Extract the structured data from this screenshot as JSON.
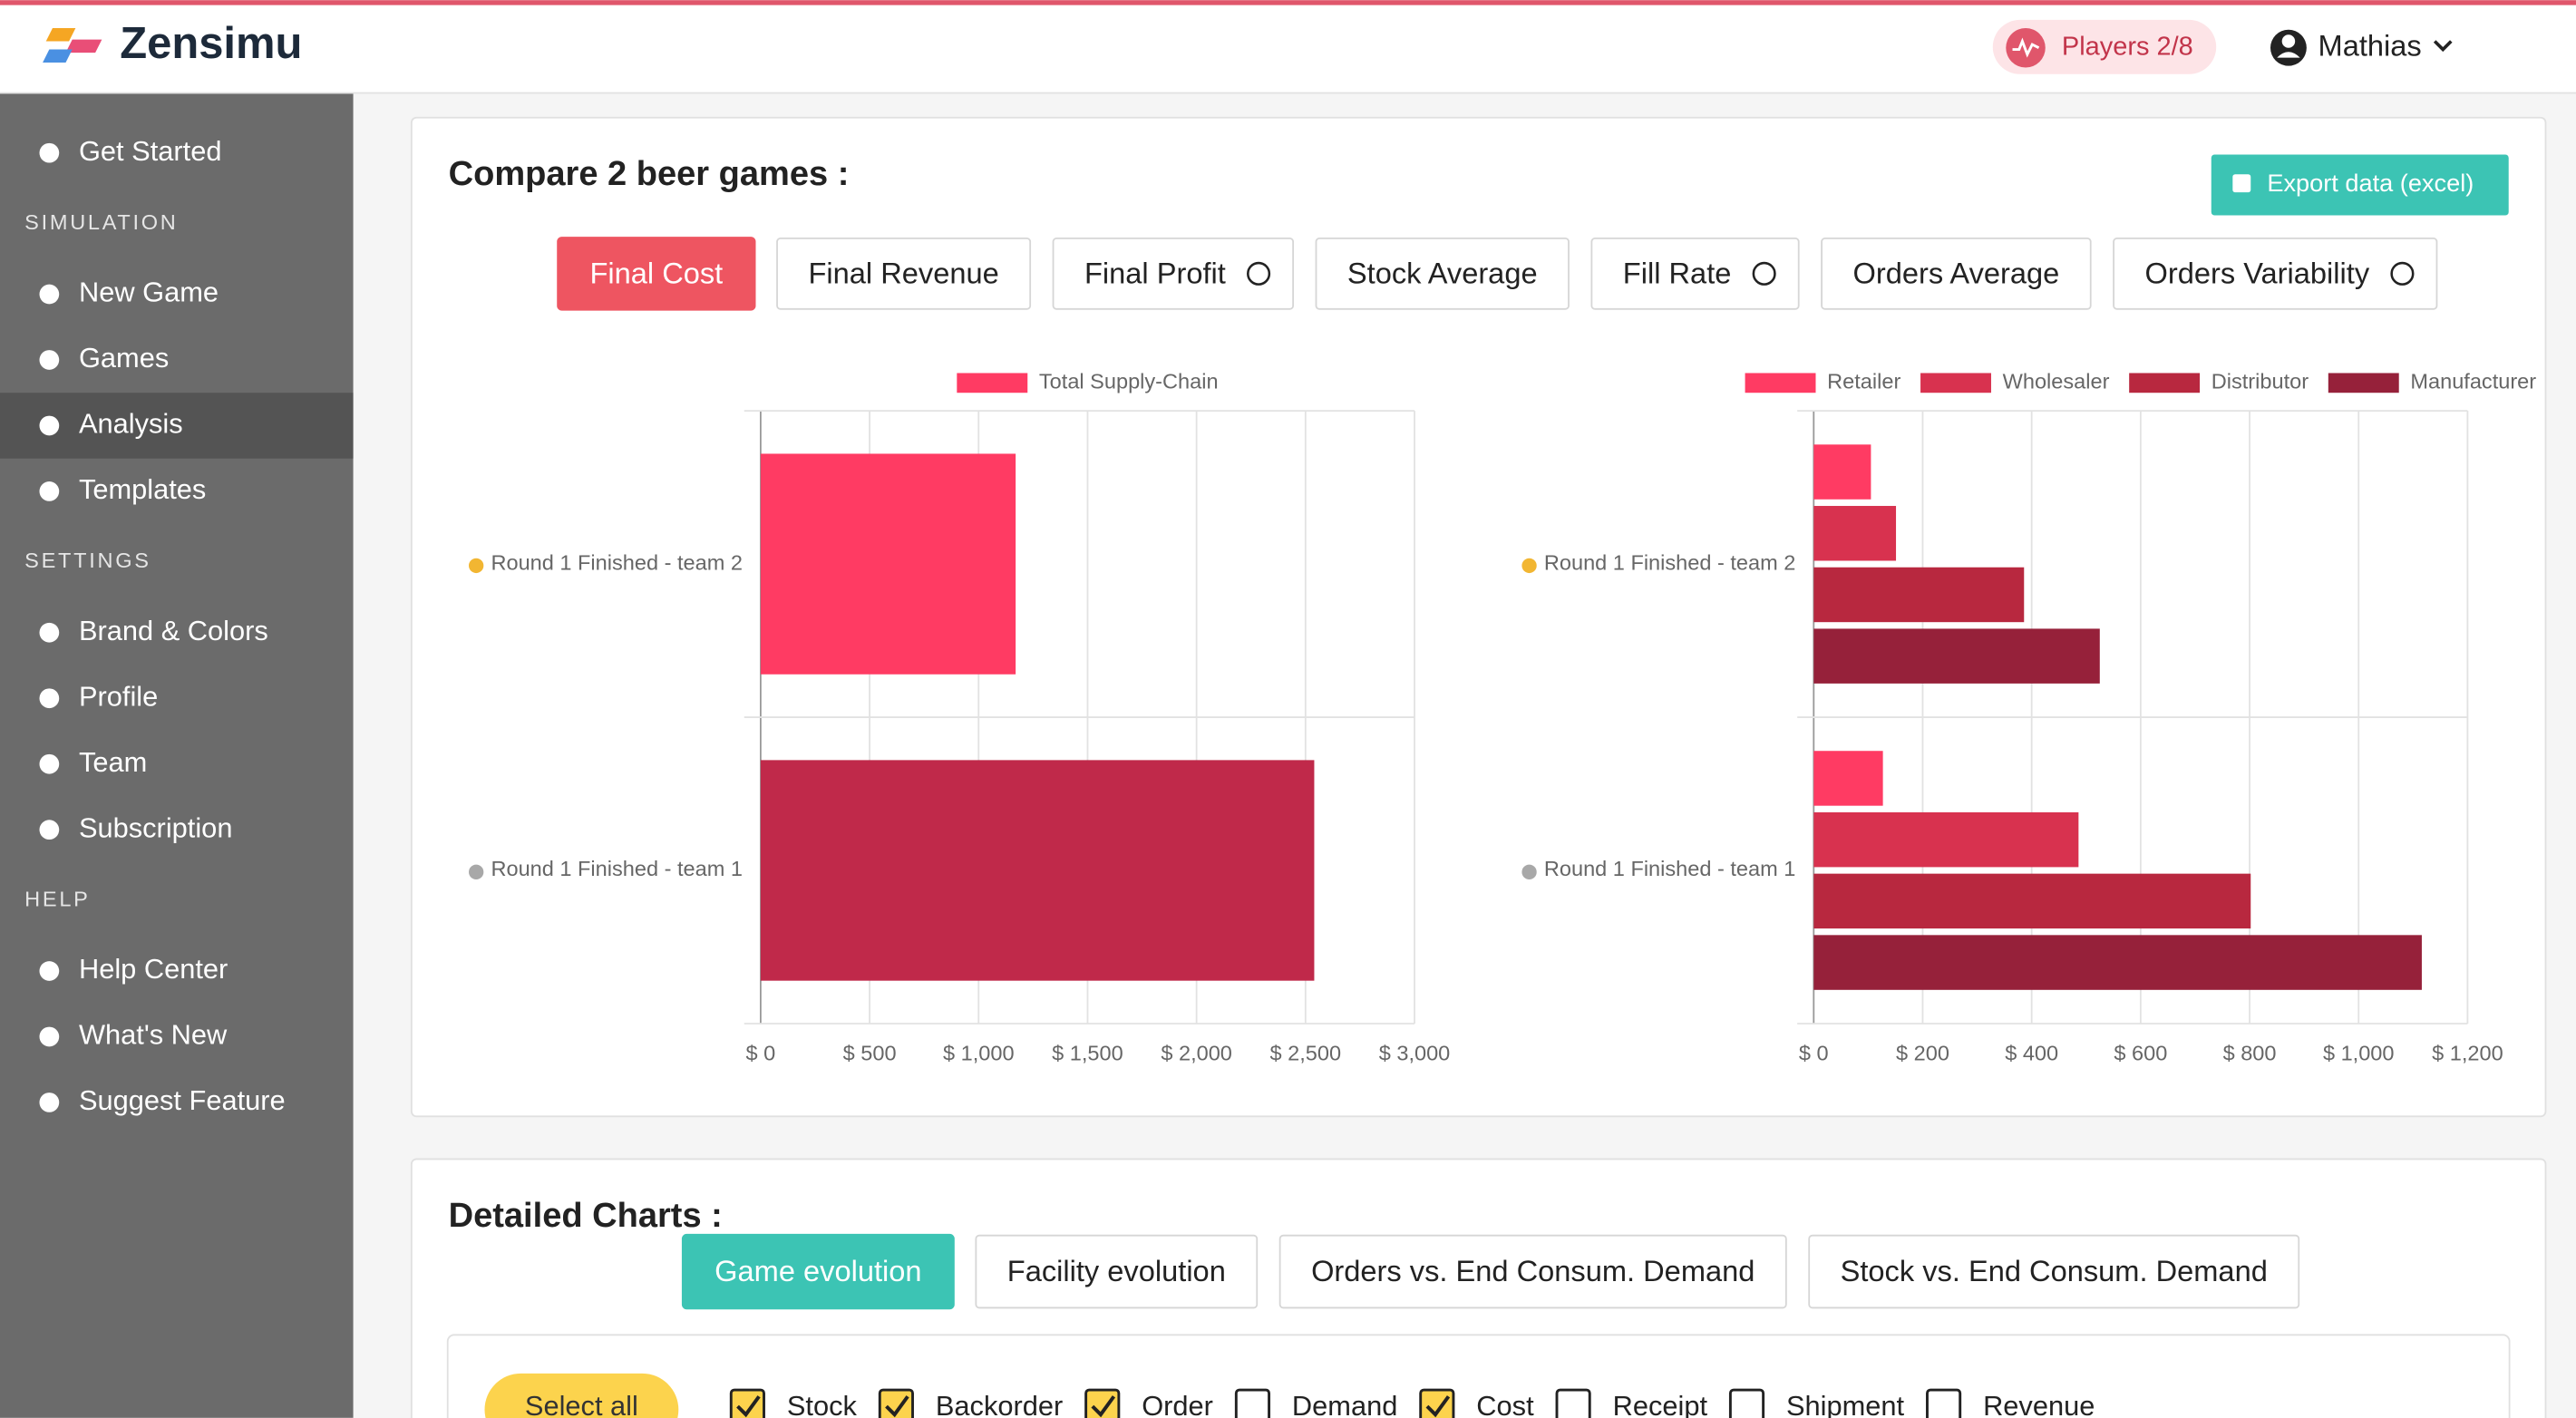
{
  "header": {
    "logo": "Zensimu",
    "players": "Players 2/8",
    "user": "Mathias"
  },
  "sidebar": [
    {
      "items": [
        {
          "label": "Get Started"
        }
      ]
    },
    {
      "title": "SIMULATION",
      "items": [
        {
          "label": "New Game"
        },
        {
          "label": "Games"
        },
        {
          "label": "Analysis",
          "active": true
        },
        {
          "label": "Templates"
        }
      ]
    },
    {
      "title": "SETTINGS",
      "items": [
        {
          "label": "Brand & Colors"
        },
        {
          "label": "Profile"
        },
        {
          "label": "Team"
        },
        {
          "label": "Subscription"
        }
      ]
    },
    {
      "title": "HELP",
      "items": [
        {
          "label": "Help Center"
        },
        {
          "label": "What's New"
        },
        {
          "label": "Suggest Feature"
        }
      ]
    }
  ],
  "compare": {
    "title": "Compare 2 beer games :",
    "export": "Export data (excel)",
    "tabs": [
      {
        "label": "Final Cost",
        "active": true
      },
      {
        "label": "Final Revenue"
      },
      {
        "label": "Final Profit",
        "help": true
      },
      {
        "label": "Stock Average"
      },
      {
        "label": "Fill Rate",
        "help": true
      },
      {
        "label": "Orders Average"
      },
      {
        "label": "Orders Variability",
        "help": true
      }
    ]
  },
  "chart_data": [
    {
      "type": "barh",
      "categories": [
        "Round 1 Finished - team 2",
        "Round 1 Finished - team 1"
      ],
      "series": [
        {
          "name": "Total Supply-Chain",
          "color": "#ff3b63",
          "colors": [
            "#ff3b63",
            "#c0294a"
          ],
          "values": [
            1170,
            2540
          ]
        }
      ],
      "xlim": [
        0,
        3000
      ],
      "xticks": [
        {
          "value": 0,
          "label": "$ 0"
        },
        {
          "value": 500,
          "label": "$ 500"
        },
        {
          "value": 1000,
          "label": "$ 1,000"
        },
        {
          "value": 1500,
          "label": "$ 1,500"
        },
        {
          "value": 2000,
          "label": "$ 2,000"
        },
        {
          "value": 2500,
          "label": "$ 2,500"
        },
        {
          "value": 3000,
          "label": "$ 3,000"
        }
      ],
      "grid": true,
      "legend": "top"
    },
    {
      "type": "barh",
      "categories": [
        "Round 1 Finished - team 2",
        "Round 1 Finished - team 1"
      ],
      "series": [
        {
          "name": "Retailer",
          "color": "#ff3b63",
          "values": [
            105,
            127
          ]
        },
        {
          "name": "Wholesaler",
          "color": "#d8324f",
          "values": [
            151,
            486
          ]
        },
        {
          "name": "Distributor",
          "color": "#b8283f",
          "values": [
            386,
            802
          ]
        },
        {
          "name": "Manufacturer",
          "color": "#96213a",
          "values": [
            525,
            1116
          ]
        }
      ],
      "xlim": [
        0,
        1200
      ],
      "xticks": [
        {
          "value": 0,
          "label": "$ 0"
        },
        {
          "value": 200,
          "label": "$ 200"
        },
        {
          "value": 400,
          "label": "$ 400"
        },
        {
          "value": 600,
          "label": "$ 600"
        },
        {
          "value": 800,
          "label": "$ 800"
        },
        {
          "value": 1000,
          "label": "$ 1,000"
        },
        {
          "value": 1200,
          "label": "$ 1,200"
        }
      ],
      "grid": true,
      "legend": "top"
    }
  ],
  "detailed": {
    "title": "Detailed Charts :",
    "tabs": [
      {
        "label": "Game evolution",
        "active": true
      },
      {
        "label": "Facility evolution"
      },
      {
        "label": "Orders vs. End Consum. Demand"
      },
      {
        "label": "Stock vs. End Consum. Demand"
      }
    ],
    "select_all": "Select all",
    "checks": [
      {
        "label": "Stock",
        "checked": true
      },
      {
        "label": "Backorder",
        "checked": true
      },
      {
        "label": "Order",
        "checked": true
      },
      {
        "label": "Demand",
        "checked": false
      },
      {
        "label": "Cost",
        "checked": true
      },
      {
        "label": "Receipt",
        "checked": false
      },
      {
        "label": "Shipment",
        "checked": false
      },
      {
        "label": "Revenue",
        "checked": false
      }
    ]
  }
}
